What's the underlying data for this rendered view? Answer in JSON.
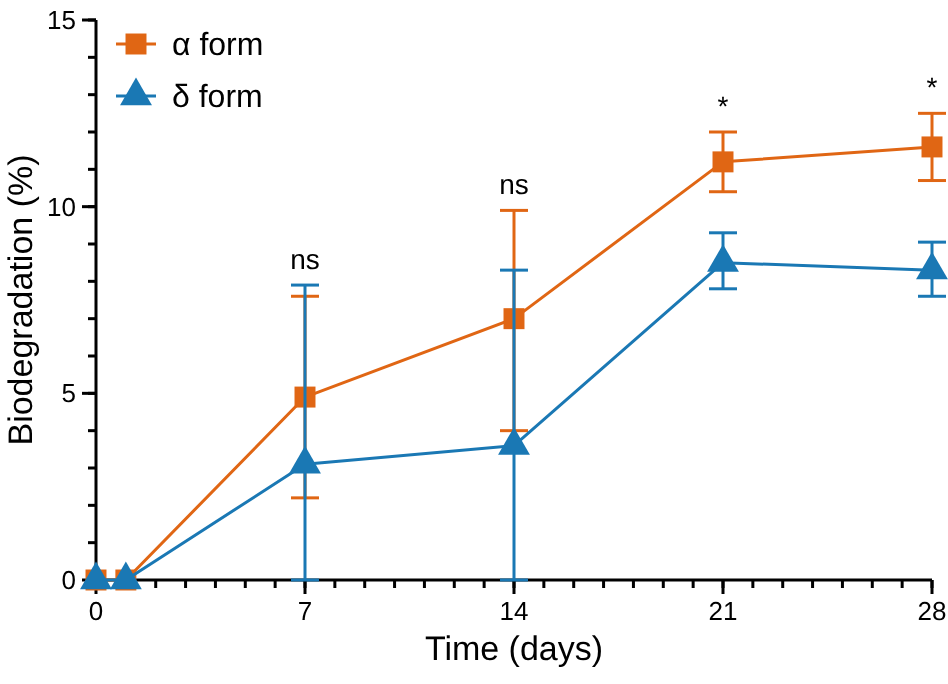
{
  "chart_data": {
    "type": "line",
    "xlabel": "Time (days)",
    "ylabel": "Biodegradation (%)",
    "x": [
      0,
      1,
      7,
      14,
      21,
      28
    ],
    "xlim": [
      0,
      28
    ],
    "xticks": [
      0,
      7,
      14,
      21,
      28
    ],
    "ylim": [
      0,
      15
    ],
    "yticks": [
      0,
      5,
      10,
      15
    ],
    "grid": false,
    "legend": "top left",
    "series": [
      {
        "name": "α form",
        "color": "#e06614",
        "marker": "square",
        "values": [
          0,
          0,
          4.9,
          7.0,
          11.2,
          11.6
        ],
        "errors": [
          null,
          null,
          [
            2.2,
            7.6
          ],
          [
            4.0,
            9.9
          ],
          [
            10.4,
            12.0
          ],
          [
            10.7,
            12.5
          ]
        ]
      },
      {
        "name": "δ form",
        "color": "#1a78b4",
        "marker": "triangle",
        "values": [
          0,
          0,
          3.1,
          3.6,
          8.5,
          8.3
        ],
        "errors": [
          null,
          null,
          [
            0,
            7.9
          ],
          [
            0,
            8.3
          ],
          [
            7.8,
            9.3
          ],
          [
            7.6,
            9.05
          ]
        ]
      }
    ],
    "annotations": [
      {
        "text": "ns",
        "x": 7,
        "y": 7.9
      },
      {
        "text": "ns",
        "x": 14,
        "y": 9.9
      },
      {
        "text": "*",
        "x": 21,
        "y": 12.0
      },
      {
        "text": "*",
        "x": 28,
        "y": 12.5
      }
    ]
  }
}
